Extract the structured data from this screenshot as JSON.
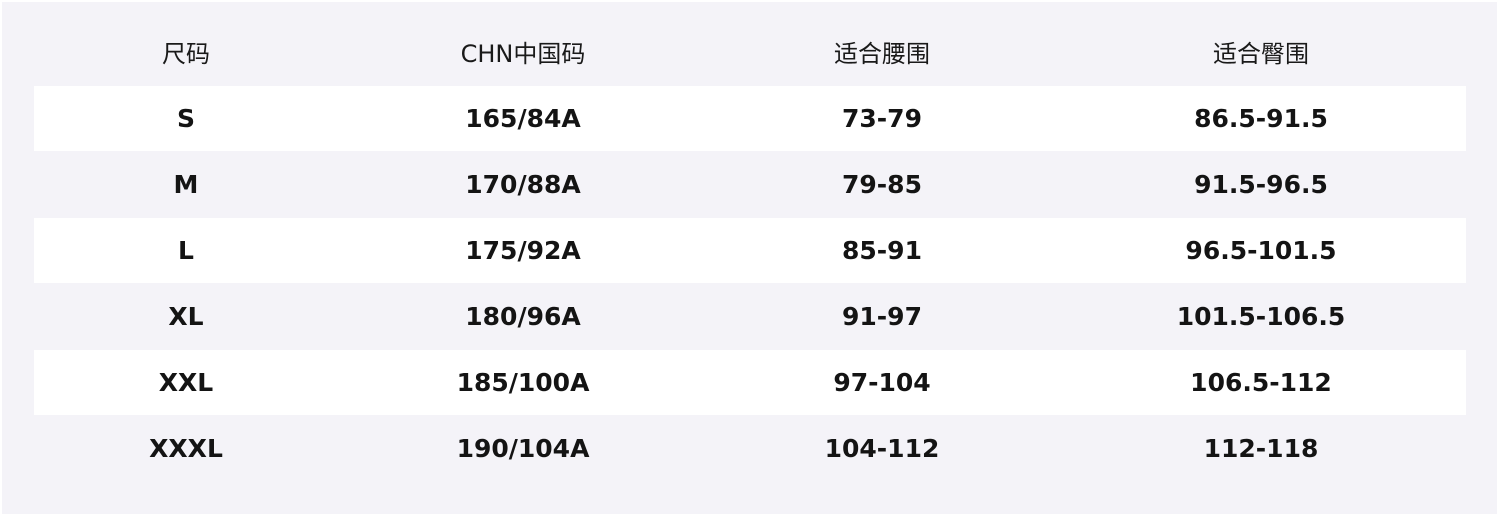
{
  "table": {
    "headers": [
      "尺码",
      "CHN中国码",
      "适合腰围",
      "适合臀围"
    ],
    "rows": [
      [
        "S",
        "165/84A",
        "73-79",
        "86.5-91.5"
      ],
      [
        "M",
        "170/88A",
        "79-85",
        "91.5-96.5"
      ],
      [
        "L",
        "175/92A",
        "85-91",
        "96.5-101.5"
      ],
      [
        "XL",
        "180/96A",
        "91-97",
        "101.5-106.5"
      ],
      [
        "XXL",
        "185/100A",
        "97-104",
        "106.5-112"
      ],
      [
        "XXXL",
        "190/104A",
        "104-112",
        "112-118"
      ]
    ]
  },
  "colors": {
    "background": "#f4f3f8",
    "stripe": "#ffffff",
    "text": "#141414"
  }
}
